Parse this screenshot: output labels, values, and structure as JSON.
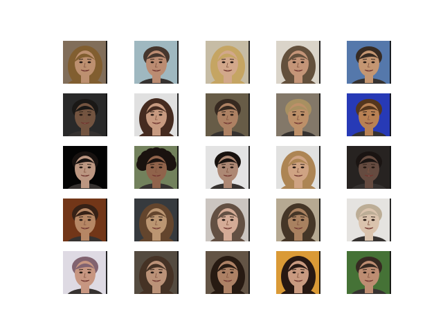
{
  "grid": {
    "rows": 5,
    "cols": 5
  },
  "tiles": [
    {
      "name": "face-r1-c1",
      "bg": "#8a7560",
      "skin": "#c99a78",
      "hair": "#8a6434",
      "hair_style": "long"
    },
    {
      "name": "face-r1-c2",
      "bg": "#a9c4cc",
      "skin": "#c7957a",
      "hair": "#4a3a30",
      "hair_style": "short"
    },
    {
      "name": "face-r1-c3",
      "bg": "#d3c8b0",
      "skin": "#e0b394",
      "hair": "#d2b06a",
      "hair_style": "long"
    },
    {
      "name": "face-r1-c4",
      "bg": "#e8e2d6",
      "skin": "#d19f80",
      "hair": "#6a5640",
      "hair_style": "long"
    },
    {
      "name": "face-r1-c5",
      "bg": "#5b80b6",
      "skin": "#d1a07a",
      "hair": "#3b2e26",
      "hair_style": "short"
    },
    {
      "name": "face-r2-c1",
      "bg": "#2c2c2c",
      "skin": "#7b5a45",
      "hair": "#1c1a18",
      "hair_style": "short"
    },
    {
      "name": "face-r2-c2",
      "bg": "#eeeeee",
      "skin": "#d4a488",
      "hair": "#4a2e22",
      "hair_style": "long"
    },
    {
      "name": "face-r2-c3",
      "bg": "#6e624c",
      "skin": "#b88a6a",
      "hair": "#3a2c22",
      "hair_style": "short"
    },
    {
      "name": "face-r2-c4",
      "bg": "#8c8070",
      "skin": "#c99a70",
      "hair": "#b39a68",
      "hair_style": "short"
    },
    {
      "name": "face-r2-c5",
      "bg": "#2a3ec2",
      "skin": "#c48a5a",
      "hair": "#5a3a20",
      "hair_style": "short"
    },
    {
      "name": "face-r3-c1",
      "bg": "#050505",
      "skin": "#c7a08a",
      "hair": "#1a1412",
      "hair_style": "short"
    },
    {
      "name": "face-r3-c2",
      "bg": "#7a8a62",
      "skin": "#9a6a50",
      "hair": "#1c1410",
      "hair_style": "curly"
    },
    {
      "name": "face-r3-c3",
      "bg": "#f2f2f2",
      "skin": "#b8917c",
      "hair": "#1a1410",
      "hair_style": "short"
    },
    {
      "name": "face-r3-c4",
      "bg": "#f0f0ee",
      "skin": "#dcae8c",
      "hair": "#b88e5a",
      "hair_style": "long"
    },
    {
      "name": "face-r3-c5",
      "bg": "#2a2624",
      "skin": "#6c5044",
      "hair": "#1c1614",
      "hair_style": "short"
    },
    {
      "name": "face-r4-c1",
      "bg": "#7a3a1a",
      "skin": "#c2906c",
      "hair": "#3a2418",
      "hair_style": "short"
    },
    {
      "name": "face-r4-c2",
      "bg": "#3a3e42",
      "skin": "#c7a07a",
      "hair": "#6a4a30",
      "hair_style": "long"
    },
    {
      "name": "face-r4-c3",
      "bg": "#d8d2cc",
      "skin": "#e2b6a0",
      "hair": "#6a5648",
      "hair_style": "long"
    },
    {
      "name": "face-r4-c4",
      "bg": "#c2b49c",
      "skin": "#b48a66",
      "hair": "#4a3a2a",
      "hair_style": "long"
    },
    {
      "name": "face-r4-c5",
      "bg": "#f4f2ee",
      "skin": "#e8d0b8",
      "hair": "#c8b8a0",
      "hair_style": "short"
    },
    {
      "name": "face-r5-c1",
      "bg": "#ece8f2",
      "skin": "#d4a08a",
      "hair": "#8a6a78",
      "hair_style": "short"
    },
    {
      "name": "face-r5-c2",
      "bg": "#5a5044",
      "skin": "#c79c80",
      "hair": "#4a3628",
      "hair_style": "long"
    },
    {
      "name": "face-r5-c3",
      "bg": "#6a5a4a",
      "skin": "#b88a6c",
      "hair": "#2a1c14",
      "hair_style": "long"
    },
    {
      "name": "face-r5-c4",
      "bg": "#e8a43a",
      "skin": "#d6a488",
      "hair": "#2a1a14",
      "hair_style": "long"
    },
    {
      "name": "face-r5-c5",
      "bg": "#4a7a3a",
      "skin": "#c9967a",
      "hair": "#3a2c24",
      "hair_style": "short"
    }
  ]
}
